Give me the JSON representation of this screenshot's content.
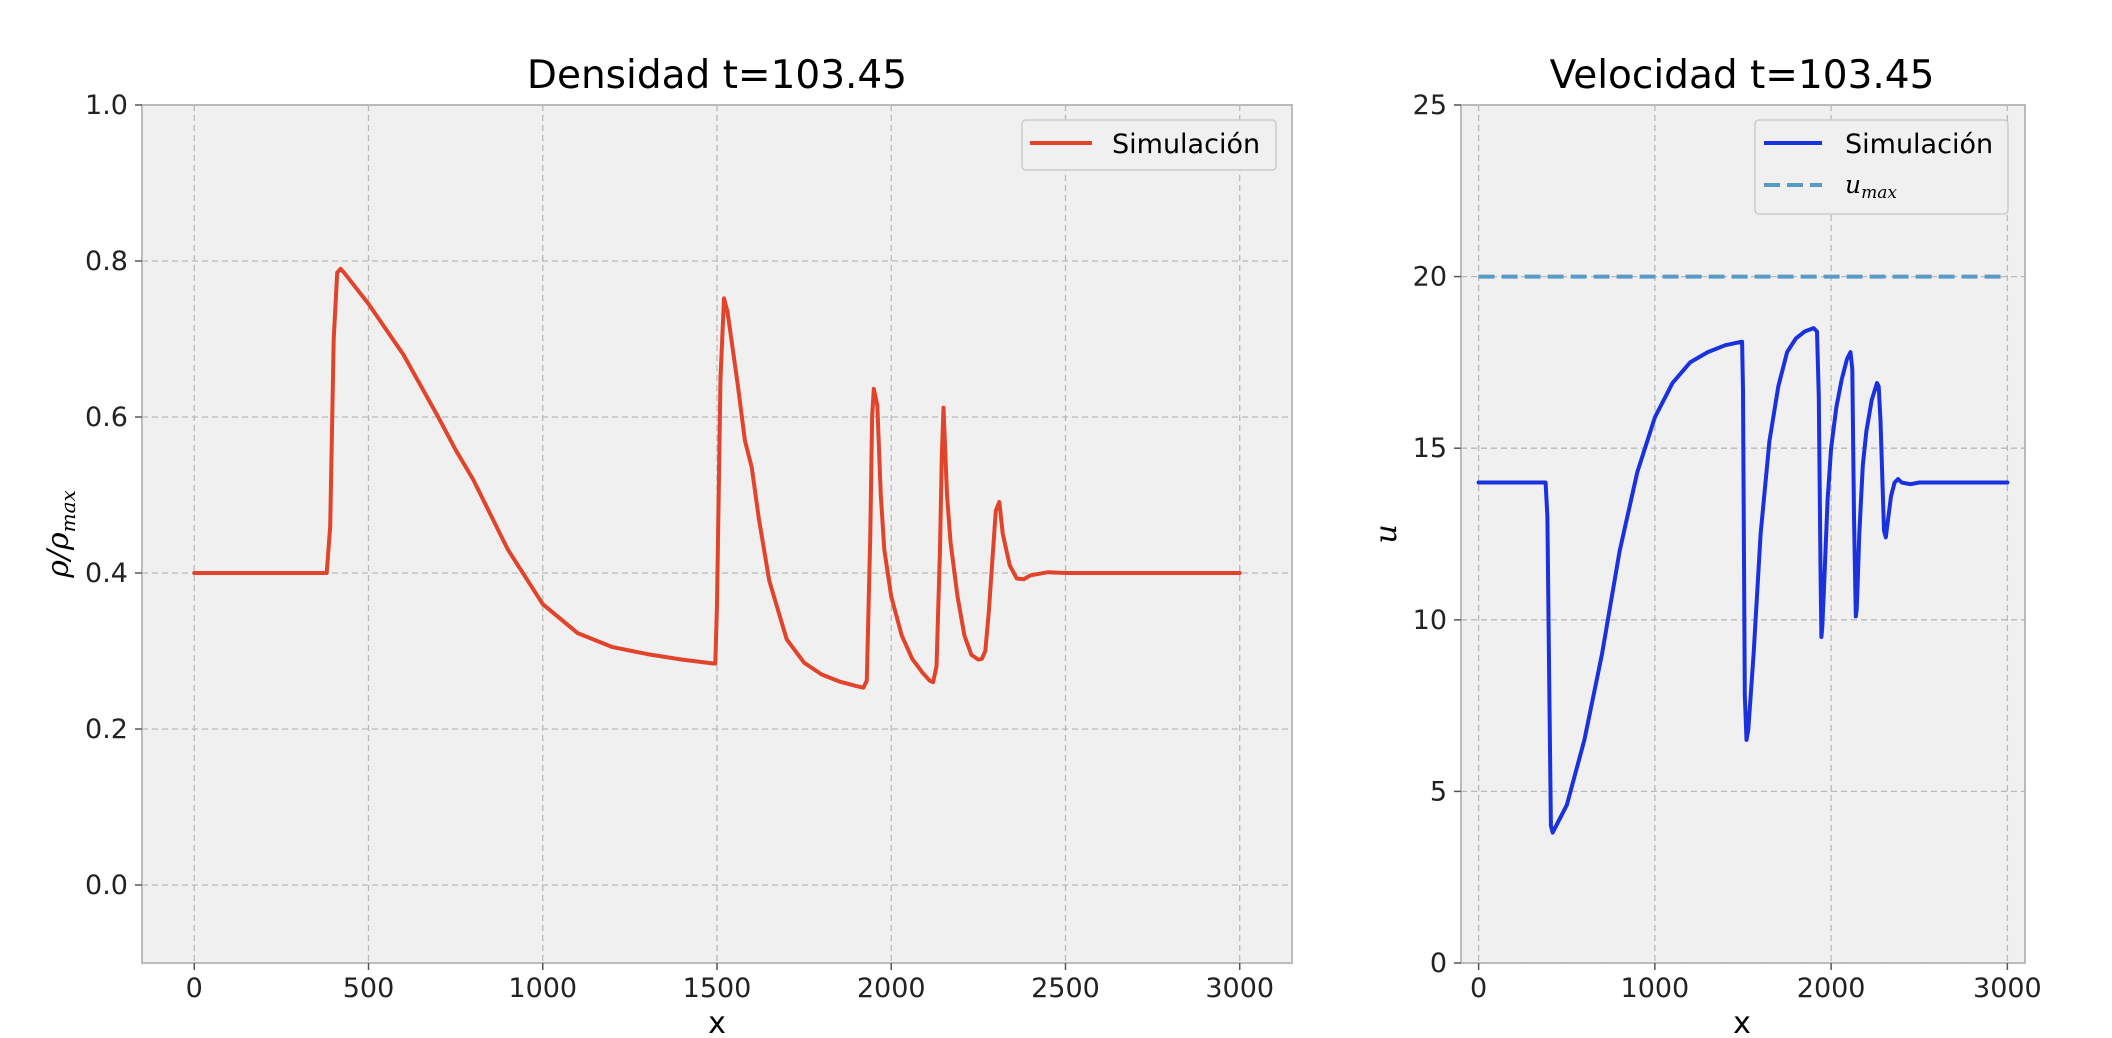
{
  "chart_data": [
    {
      "type": "line",
      "title": "Densidad t=103.45",
      "xlabel": "x",
      "ylabel": "ρ/ρ",
      "ylabel_sub": "max",
      "xlim": [
        -150,
        3150
      ],
      "ylim": [
        -0.1,
        1.0
      ],
      "xticks": [
        "0",
        "500",
        "1000",
        "1500",
        "2000",
        "2500",
        "3000"
      ],
      "yticks": [
        "0.0",
        "0.2",
        "0.4",
        "0.6",
        "0.8",
        "1.0"
      ],
      "grid": true,
      "legend_position": "top-right",
      "series": [
        {
          "name": "Simulación",
          "color": "#e2432b",
          "style": "solid",
          "x": [
            0,
            380,
            390,
            400,
            410,
            420,
            430,
            500,
            600,
            700,
            750,
            800,
            900,
            1000,
            1100,
            1200,
            1300,
            1400,
            1490,
            1495,
            1500,
            1510,
            1520,
            1530,
            1560,
            1580,
            1600,
            1620,
            1650,
            1700,
            1750,
            1800,
            1850,
            1900,
            1920,
            1930,
            1940,
            1945,
            1950,
            1960,
            1970,
            1980,
            2000,
            2030,
            2060,
            2090,
            2110,
            2120,
            2130,
            2140,
            2145,
            2150,
            2160,
            2170,
            2190,
            2210,
            2230,
            2250,
            2260,
            2270,
            2280,
            2300,
            2310,
            2320,
            2340,
            2360,
            2380,
            2400,
            2450,
            2500,
            3000
          ],
          "y": [
            0.4,
            0.4,
            0.46,
            0.7,
            0.785,
            0.79,
            0.785,
            0.745,
            0.68,
            0.6,
            0.558,
            0.52,
            0.43,
            0.36,
            0.323,
            0.305,
            0.296,
            0.289,
            0.284,
            0.284,
            0.36,
            0.65,
            0.752,
            0.735,
            0.64,
            0.57,
            0.535,
            0.47,
            0.39,
            0.315,
            0.285,
            0.27,
            0.261,
            0.255,
            0.253,
            0.262,
            0.45,
            0.6,
            0.636,
            0.615,
            0.5,
            0.43,
            0.37,
            0.32,
            0.29,
            0.272,
            0.262,
            0.26,
            0.28,
            0.43,
            0.55,
            0.612,
            0.5,
            0.44,
            0.37,
            0.32,
            0.295,
            0.289,
            0.29,
            0.3,
            0.35,
            0.48,
            0.491,
            0.45,
            0.41,
            0.393,
            0.392,
            0.397,
            0.401,
            0.4,
            0.4
          ]
        }
      ]
    },
    {
      "type": "line",
      "title": "Velocidad t=103.45",
      "xlabel": "x",
      "ylabel": "u",
      "xlim": [
        -100,
        3100
      ],
      "ylim": [
        0,
        25
      ],
      "xticks": [
        "0",
        "1000",
        "2000",
        "3000"
      ],
      "yticks": [
        "0",
        "5",
        "10",
        "15",
        "20",
        "25"
      ],
      "grid": true,
      "legend_position": "top-right",
      "series": [
        {
          "name": "Simulación",
          "color": "#1a31e0",
          "style": "solid",
          "x": [
            0,
            380,
            390,
            400,
            410,
            420,
            430,
            500,
            600,
            700,
            800,
            900,
            1000,
            1100,
            1200,
            1300,
            1400,
            1490,
            1495,
            1500,
            1510,
            1520,
            1530,
            1560,
            1600,
            1650,
            1700,
            1750,
            1800,
            1850,
            1900,
            1920,
            1930,
            1940,
            1945,
            1950,
            1960,
            1980,
            2000,
            2030,
            2060,
            2090,
            2110,
            2120,
            2130,
            2140,
            2145,
            2150,
            2160,
            2180,
            2200,
            2230,
            2260,
            2270,
            2280,
            2300,
            2310,
            2320,
            2340,
            2360,
            2380,
            2400,
            2450,
            2500,
            3000
          ],
          "y": [
            14,
            14,
            13,
            8.5,
            4.0,
            3.8,
            3.9,
            4.6,
            6.5,
            9.0,
            12.0,
            14.3,
            15.9,
            16.9,
            17.5,
            17.8,
            18.0,
            18.1,
            18.1,
            16.7,
            7.8,
            6.5,
            6.8,
            9.0,
            12.5,
            15.2,
            16.8,
            17.8,
            18.2,
            18.4,
            18.5,
            18.4,
            16.5,
            11.5,
            9.5,
            9.8,
            11.0,
            13.5,
            15.0,
            16.2,
            17.0,
            17.6,
            17.8,
            17.3,
            13.0,
            10.1,
            10.3,
            11.0,
            12.5,
            14.5,
            15.5,
            16.4,
            16.9,
            16.8,
            15.8,
            12.6,
            12.4,
            12.8,
            13.6,
            14.0,
            14.1,
            14.0,
            13.95,
            14,
            14
          ]
        },
        {
          "name": "u",
          "name_sub": "max",
          "color": "#5a9ac6",
          "style": "dashed",
          "x": [
            0,
            3000
          ],
          "y": [
            20,
            20
          ]
        }
      ]
    }
  ]
}
